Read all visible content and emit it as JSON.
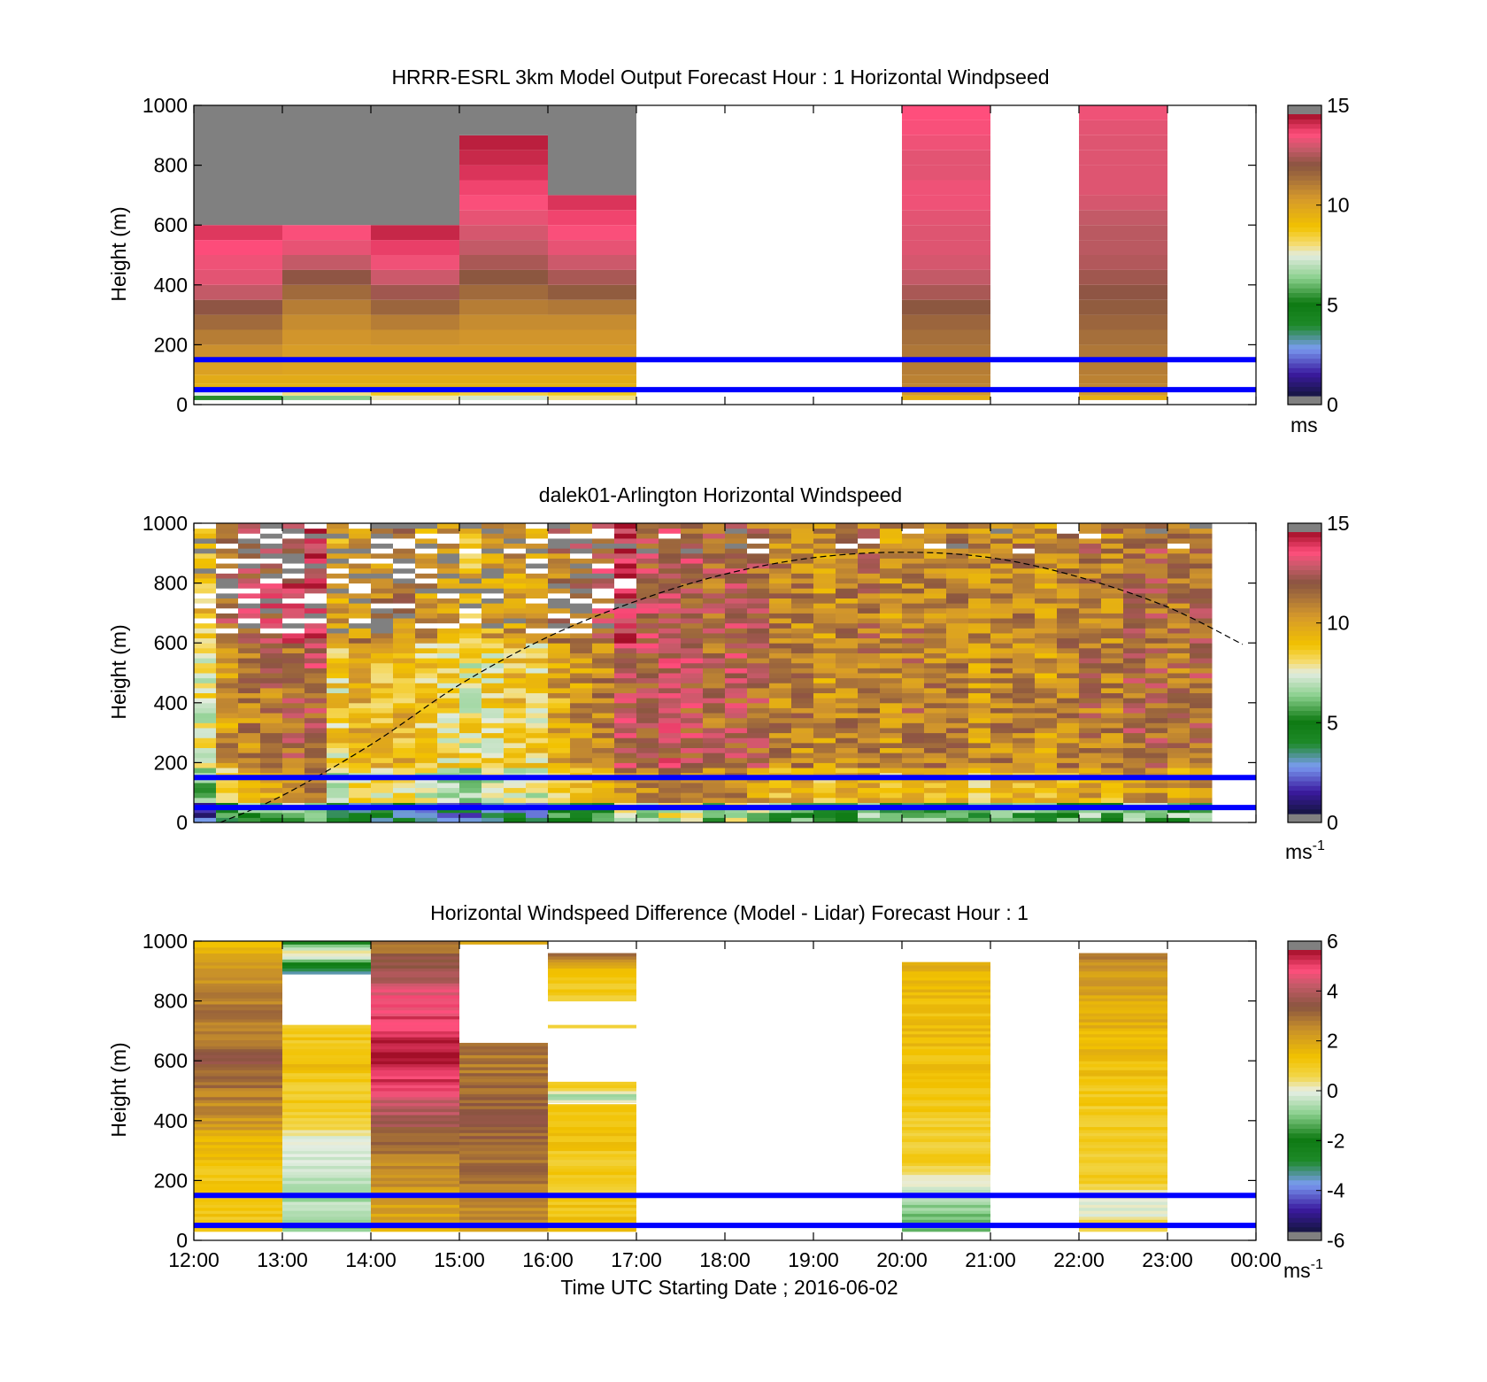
{
  "figure": {
    "xlabel": "Time UTC  Starting Date ; 2016-06-02",
    "x_tick_labels": [
      "12:00",
      "13:00",
      "14:00",
      "15:00",
      "16:00",
      "17:00",
      "18:00",
      "19:00",
      "20:00",
      "21:00",
      "22:00",
      "23:00",
      "00:00"
    ]
  },
  "chart_data": [
    {
      "type": "heatmap",
      "title": "HRRR-ESRL 3km Model Output   Forecast Hour : 1 Horizontal Windpseed",
      "ylabel": "Height (m)",
      "xlim": [
        12,
        24
      ],
      "ylim": [
        0,
        1000
      ],
      "y_ticks": [
        0,
        200,
        400,
        600,
        800,
        1000
      ],
      "colorbar": {
        "ticks": [
          0,
          5,
          10,
          15
        ],
        "min": 0,
        "max": 15,
        "unit": "ms",
        "scheme": "speed"
      },
      "reference_lines_m": [
        50,
        150
      ],
      "gray_value_meaning": "above/below range",
      "columns": [
        {
          "t0": 12,
          "t1": 13,
          "top": 600,
          "gray_above": 1000,
          "profile": [
            [
              15,
              5
            ],
            [
              30,
              5.5
            ],
            [
              50,
              9.5
            ],
            [
              100,
              10
            ],
            [
              200,
              11
            ],
            [
              300,
              12
            ],
            [
              400,
              13.5
            ],
            [
              500,
              13.8
            ],
            [
              600,
              14.5
            ]
          ]
        },
        {
          "t0": 13,
          "t1": 14,
          "top": 600,
          "gray_above": 1000,
          "profile": [
            [
              15,
              6
            ],
            [
              30,
              6.5
            ],
            [
              50,
              9.5
            ],
            [
              100,
              10
            ],
            [
              200,
              10.5
            ],
            [
              300,
              11
            ],
            [
              400,
              12
            ],
            [
              500,
              13.5
            ],
            [
              600,
              14
            ]
          ]
        },
        {
          "t0": 14,
          "t1": 15,
          "top": 600,
          "gray_above": 1000,
          "profile": [
            [
              15,
              7.5
            ],
            [
              30,
              8
            ],
            [
              50,
              9.5
            ],
            [
              100,
              10
            ],
            [
              200,
              10.5
            ],
            [
              300,
              11.5
            ],
            [
              400,
              13
            ],
            [
              500,
              14
            ],
            [
              600,
              14.8
            ]
          ]
        },
        {
          "t0": 15,
          "t1": 16,
          "top": 900,
          "gray_above": 1000,
          "profile": [
            [
              15,
              7
            ],
            [
              30,
              7.5
            ],
            [
              50,
              9.5
            ],
            [
              100,
              10
            ],
            [
              200,
              10.5
            ],
            [
              300,
              11
            ],
            [
              400,
              12
            ],
            [
              500,
              13
            ],
            [
              600,
              13.5
            ],
            [
              700,
              14
            ],
            [
              800,
              14.5
            ],
            [
              900,
              14.8
            ]
          ]
        },
        {
          "t0": 16,
          "t1": 17,
          "top": 700,
          "gray_above": 1000,
          "profile": [
            [
              15,
              8
            ],
            [
              30,
              8
            ],
            [
              50,
              9.5
            ],
            [
              100,
              10
            ],
            [
              200,
              10.5
            ],
            [
              300,
              11
            ],
            [
              400,
              12.5
            ],
            [
              500,
              13.5
            ],
            [
              600,
              14
            ],
            [
              700,
              14.5
            ]
          ]
        },
        {
          "t0": 20,
          "t1": 21,
          "top": 1000,
          "gray_above": null,
          "profile": [
            [
              15,
              9.5
            ],
            [
              30,
              10
            ],
            [
              50,
              11
            ],
            [
              200,
              11.5
            ],
            [
              300,
              12
            ],
            [
              400,
              13
            ],
            [
              500,
              13.5
            ],
            [
              600,
              13.5
            ],
            [
              700,
              13.8
            ],
            [
              800,
              13.5
            ],
            [
              900,
              13.8
            ],
            [
              1000,
              14
            ]
          ]
        },
        {
          "t0": 22,
          "t1": 23,
          "top": 1000,
          "gray_above": null,
          "profile": [
            [
              15,
              9.5
            ],
            [
              30,
              10
            ],
            [
              50,
              11
            ],
            [
              200,
              11.5
            ],
            [
              300,
              12
            ],
            [
              400,
              12.5
            ],
            [
              500,
              13
            ],
            [
              600,
              13
            ],
            [
              700,
              13.5
            ],
            [
              800,
              13.5
            ],
            [
              900,
              13.5
            ],
            [
              1000,
              13.8
            ]
          ]
        }
      ]
    },
    {
      "type": "heatmap",
      "title": "dalek01-Arlington  Horizontal Windspeed",
      "ylabel": "Height (m)",
      "xlim": [
        12,
        24
      ],
      "ylim": [
        0,
        1000
      ],
      "y_ticks": [
        0,
        200,
        400,
        600,
        800,
        1000
      ],
      "colorbar": {
        "ticks": [
          0,
          5,
          10,
          15
        ],
        "min": 0,
        "max": 15,
        "unit": "ms",
        "unit_sup": "-1",
        "scheme": "speed"
      },
      "reference_lines_m": [
        50,
        150
      ],
      "time_step_h": 0.25,
      "time_end": 23.85,
      "column_means": [
        7.5,
        10.5,
        11,
        11.5,
        12,
        12.5,
        8.5,
        9.5,
        9.5,
        9.5,
        9,
        8.5,
        8,
        8.5,
        9,
        8.5,
        10,
        10.5,
        11,
        12.5,
        12.5,
        13,
        12.5,
        12,
        12.5,
        12,
        11,
        11,
        10.5,
        11,
        11.5,
        10.5,
        11.5,
        11,
        11,
        10.5,
        11,
        11,
        10.5,
        11,
        11.5,
        11,
        12,
        12,
        11.5,
        12
      ],
      "sparse_until": 16.8,
      "boundary_layer_curve": [
        [
          12.3,
          0
        ],
        [
          13,
          90
        ],
        [
          14,
          260
        ],
        [
          15,
          460
        ],
        [
          16,
          620
        ],
        [
          17,
          740
        ],
        [
          18,
          830
        ],
        [
          19,
          885
        ],
        [
          20,
          903
        ],
        [
          21,
          885
        ],
        [
          22,
          820
        ],
        [
          23,
          720
        ],
        [
          23.85,
          595
        ]
      ]
    },
    {
      "type": "heatmap",
      "title": "Horizontal Windspeed Difference (Model - Lidar) Forecast Hour : 1",
      "ylabel": "Height (m)",
      "xlim": [
        12,
        24
      ],
      "ylim": [
        0,
        1000
      ],
      "y_ticks": [
        0,
        200,
        400,
        600,
        800,
        1000
      ],
      "colorbar": {
        "ticks": [
          -6,
          -4,
          -2,
          0,
          2,
          4,
          6
        ],
        "min": -6,
        "max": 6,
        "unit": "ms",
        "unit_sup": "-1",
        "scheme": "diff"
      },
      "reference_lines_m": [
        50,
        150
      ],
      "columns": [
        {
          "t0": 12,
          "t1": 13,
          "bands": [
            [
              30,
              1000
            ]
          ],
          "profile": [
            [
              30,
              1.5
            ],
            [
              150,
              1
            ],
            [
              300,
              1.5
            ],
            [
              400,
              2.5
            ],
            [
              500,
              3
            ],
            [
              600,
              3.5
            ],
            [
              700,
              3
            ],
            [
              800,
              3
            ],
            [
              900,
              2.5
            ],
            [
              1000,
              1.5
            ]
          ]
        },
        {
          "t0": 13,
          "t1": 14,
          "bands": [
            [
              30,
              720
            ],
            [
              890,
              1000
            ]
          ],
          "profile": [
            [
              30,
              -1
            ],
            [
              150,
              -0.5
            ],
            [
              250,
              -0.5
            ],
            [
              330,
              0
            ],
            [
              400,
              1
            ],
            [
              500,
              1
            ],
            [
              600,
              1.5
            ],
            [
              700,
              1
            ],
            [
              890,
              -4
            ],
            [
              930,
              -2
            ],
            [
              960,
              1
            ],
            [
              1000,
              -2.5
            ]
          ]
        },
        {
          "t0": 14,
          "t1": 15,
          "bands": [
            [
              30,
              1000
            ]
          ],
          "profile": [
            [
              30,
              2
            ],
            [
              200,
              2.5
            ],
            [
              300,
              3
            ],
            [
              400,
              4
            ],
            [
              500,
              5
            ],
            [
              600,
              6
            ],
            [
              700,
              5.5
            ],
            [
              800,
              5
            ],
            [
              900,
              4
            ],
            [
              1000,
              3
            ]
          ]
        },
        {
          "t0": 15,
          "t1": 16,
          "bands": [
            [
              30,
              600
            ],
            [
              600,
              660
            ],
            [
              990,
              1000
            ]
          ],
          "profile": [
            [
              30,
              2.5
            ],
            [
              200,
              3
            ],
            [
              400,
              3.5
            ],
            [
              600,
              3
            ],
            [
              660,
              3.5
            ],
            [
              1000,
              2
            ]
          ]
        },
        {
          "t0": 16,
          "t1": 17,
          "bands": [
            [
              30,
              455
            ],
            [
              460,
              530
            ],
            [
              710,
              720
            ],
            [
              800,
              960
            ]
          ],
          "profile": [
            [
              30,
              1.5
            ],
            [
              200,
              1
            ],
            [
              455,
              1.5
            ],
            [
              470,
              -1
            ],
            [
              520,
              1
            ],
            [
              715,
              1
            ],
            [
              800,
              1
            ],
            [
              900,
              1.5
            ],
            [
              960,
              3.5
            ]
          ]
        },
        {
          "t0": 20,
          "t1": 21,
          "bands": [
            [
              30,
              930
            ]
          ],
          "profile": [
            [
              30,
              -1.5
            ],
            [
              100,
              -1
            ],
            [
              180,
              0
            ],
            [
              250,
              1
            ],
            [
              400,
              1
            ],
            [
              600,
              1.5
            ],
            [
              800,
              1.5
            ],
            [
              930,
              2
            ]
          ]
        },
        {
          "t0": 22,
          "t1": 23,
          "bands": [
            [
              30,
              960
            ]
          ],
          "profile": [
            [
              30,
              1
            ],
            [
              80,
              0.2
            ],
            [
              130,
              0
            ],
            [
              200,
              1
            ],
            [
              400,
              1
            ],
            [
              600,
              1.5
            ],
            [
              800,
              2
            ],
            [
              900,
              2.5
            ],
            [
              960,
              3
            ]
          ]
        }
      ]
    }
  ],
  "colors": {
    "reference_line": "#0000ff",
    "missing_value": "#808080",
    "background": "#ffffff"
  }
}
